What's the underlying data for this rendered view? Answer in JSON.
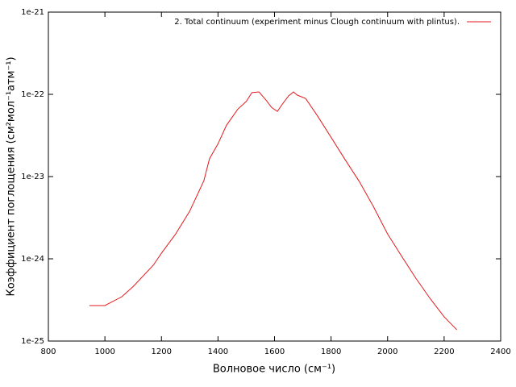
{
  "chart_data": {
    "type": "line",
    "xlabel": "Волновое число (см⁻¹)",
    "ylabel": "Коэффициент поглощения (см²мол⁻¹атм⁻¹)",
    "x": [
      945,
      1000,
      1060,
      1100,
      1171,
      1200,
      1250,
      1300,
      1350,
      1370,
      1400,
      1430,
      1470,
      1500,
      1520,
      1545,
      1570,
      1590,
      1610,
      1630,
      1650,
      1667,
      1680,
      1710,
      1750,
      1800,
      1850,
      1900,
      1950,
      2000,
      2050,
      2100,
      2150,
      2200,
      2245
    ],
    "series": [
      {
        "name": "2. Total continuum (experiment minus Clough continuum with plintus).",
        "color": "#e41a1c",
        "values": [
          2.7e-25,
          2.7e-25,
          3.46e-25,
          4.6e-25,
          8.35e-25,
          1.17e-24,
          2e-24,
          3.8e-24,
          8.9e-24,
          1.65e-23,
          2.5e-23,
          4.2e-23,
          6.6e-23,
          8.2e-23,
          1.05e-22,
          1.07e-22,
          8.5e-23,
          6.9e-23,
          6.2e-23,
          7.8e-23,
          9.6e-23,
          1.07e-22,
          9.8e-23,
          8.9e-23,
          5.6e-23,
          3e-23,
          1.6e-23,
          8.7e-24,
          4.3e-24,
          2e-24,
          1.07e-24,
          5.8e-25,
          3.3e-25,
          1.97e-25,
          1.37e-25
        ]
      }
    ],
    "xlim": [
      800,
      2400
    ],
    "xticks": [
      800,
      1000,
      1200,
      1400,
      1600,
      1800,
      2000,
      2200,
      2400
    ],
    "ylim": [
      1e-25,
      1e-21
    ],
    "ylog": true,
    "yticks": [
      {
        "value": 1e-25,
        "label": "1e-25"
      },
      {
        "value": 1e-24,
        "label": "1e-24"
      },
      {
        "value": 1e-23,
        "label": "1e-23"
      },
      {
        "value": 1e-22,
        "label": "1e-22"
      },
      {
        "value": 1e-21,
        "label": "1e-21"
      }
    ],
    "legend": "upper right",
    "grid": false
  }
}
